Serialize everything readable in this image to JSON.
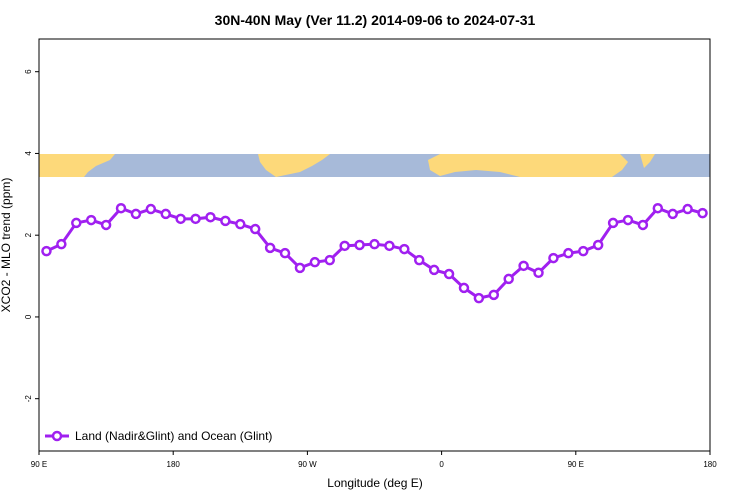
{
  "chart_data": {
    "type": "line",
    "title": "30N-40N May (Ver 11.2)   2014-09-06 to 2024-07-31",
    "x_label": "Longitude (deg E)",
    "y_label": "XCO2 - MLO trend (ppm)",
    "xlim": [
      90,
      540
    ],
    "ylim": [
      -3.28,
      6.8
    ],
    "xticks": [
      {
        "value": 90,
        "label": "90 E"
      },
      180,
      {
        "value": 270,
        "label": "90 W"
      },
      {
        "value": 360,
        "label": "0"
      },
      {
        "value": 450,
        "label": "90 E"
      },
      {
        "value": 540,
        "label": "180"
      }
    ],
    "yticks": [
      -2,
      0,
      2,
      4,
      6
    ],
    "legend": "bottomleft",
    "series": [
      {
        "name": "Land (Nadir&Glint) and Ocean (Glint)",
        "color": "#a020f0",
        "x": [
          95,
          105,
          115,
          125,
          135,
          145,
          155,
          165,
          175,
          185,
          195,
          205,
          215,
          225,
          235,
          245,
          255,
          265,
          275,
          285,
          295,
          305,
          315,
          325,
          335,
          345,
          355,
          365,
          375,
          385,
          395,
          405,
          415,
          425,
          435,
          445,
          455,
          465,
          475,
          485,
          495,
          505,
          515,
          525,
          535
        ],
        "values": [
          1.61,
          1.78,
          2.3,
          2.37,
          2.25,
          2.66,
          2.52,
          2.64,
          2.52,
          2.4,
          2.4,
          2.44,
          2.35,
          2.27,
          2.15,
          1.69,
          1.56,
          1.2,
          1.34,
          1.39,
          1.74,
          1.76,
          1.78,
          1.74,
          1.66,
          1.39,
          1.15,
          1.05,
          0.71,
          0.46,
          0.54,
          0.93,
          1.25,
          1.08,
          1.44,
          1.56,
          1.61,
          1.76,
          2.3,
          2.37,
          2.25,
          2.66,
          2.52,
          2.64,
          2.54
        ]
      }
    ]
  }
}
